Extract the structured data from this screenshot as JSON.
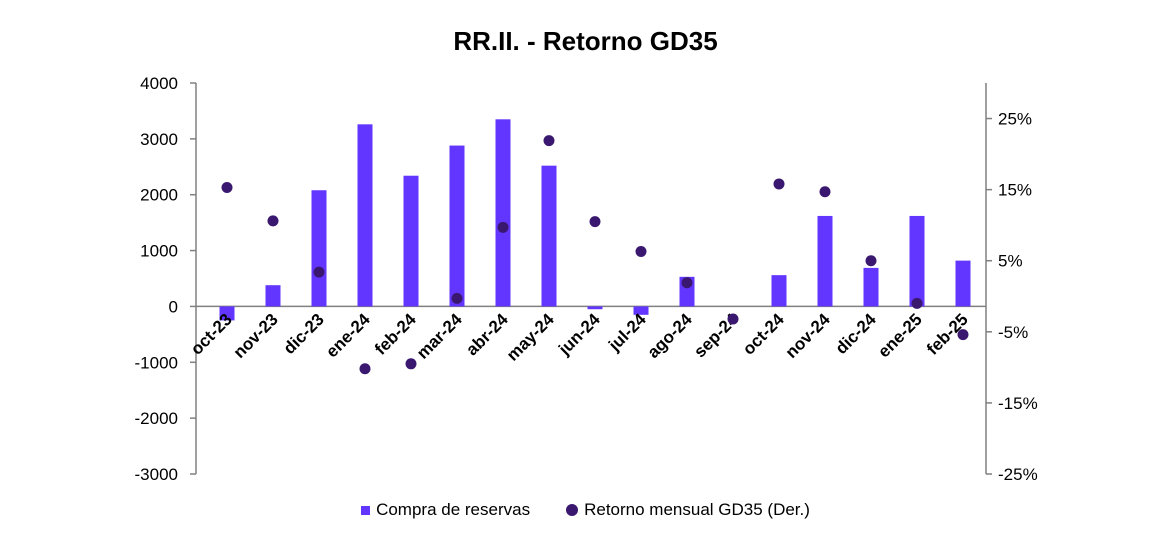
{
  "chart_data": {
    "type": "bar",
    "title": "RR.II. - Retorno GD35",
    "categories": [
      "oct-23",
      "nov-23",
      "dic-23",
      "ene-24",
      "feb-24",
      "mar-24",
      "abr-24",
      "may-24",
      "jun-24",
      "jul-24",
      "ago-24",
      "sep-24",
      "oct-24",
      "nov-24",
      "dic-24",
      "ene-25",
      "feb-25"
    ],
    "series": [
      {
        "name": "Compra de reservas",
        "kind": "bar",
        "axis": "left",
        "color": "#6236ff",
        "values": [
          -250,
          380,
          2080,
          3260,
          2340,
          2880,
          3350,
          2520,
          -50,
          -150,
          530,
          0,
          560,
          1620,
          690,
          1620,
          820
        ]
      },
      {
        "name": "Retorno mensual GD35 (Der.)",
        "kind": "scatter",
        "axis": "right",
        "color": "#3a1870",
        "values": [
          15.3,
          10.6,
          3.4,
          -10.2,
          -9.5,
          -0.3,
          9.7,
          21.9,
          10.5,
          6.3,
          1.9,
          -3.2,
          15.8,
          14.7,
          5.0,
          -1.0,
          -5.4
        ]
      }
    ],
    "y_left": {
      "min": -3000,
      "max": 4000,
      "ticks": [
        "4000",
        "3000",
        "2000",
        "1000",
        "0",
        "-1000",
        "-2000",
        "-3000"
      ],
      "tick_values": [
        4000,
        3000,
        2000,
        1000,
        0,
        -1000,
        -2000,
        -3000
      ]
    },
    "y_right": {
      "min": -25,
      "max": 30,
      "ticks": [
        "25%",
        "15%",
        "5%",
        "-5%",
        "-15%",
        "-25%"
      ],
      "tick_values": [
        25,
        15,
        5,
        -5,
        -15,
        -25
      ]
    },
    "grid": false,
    "legend": "bottom"
  }
}
